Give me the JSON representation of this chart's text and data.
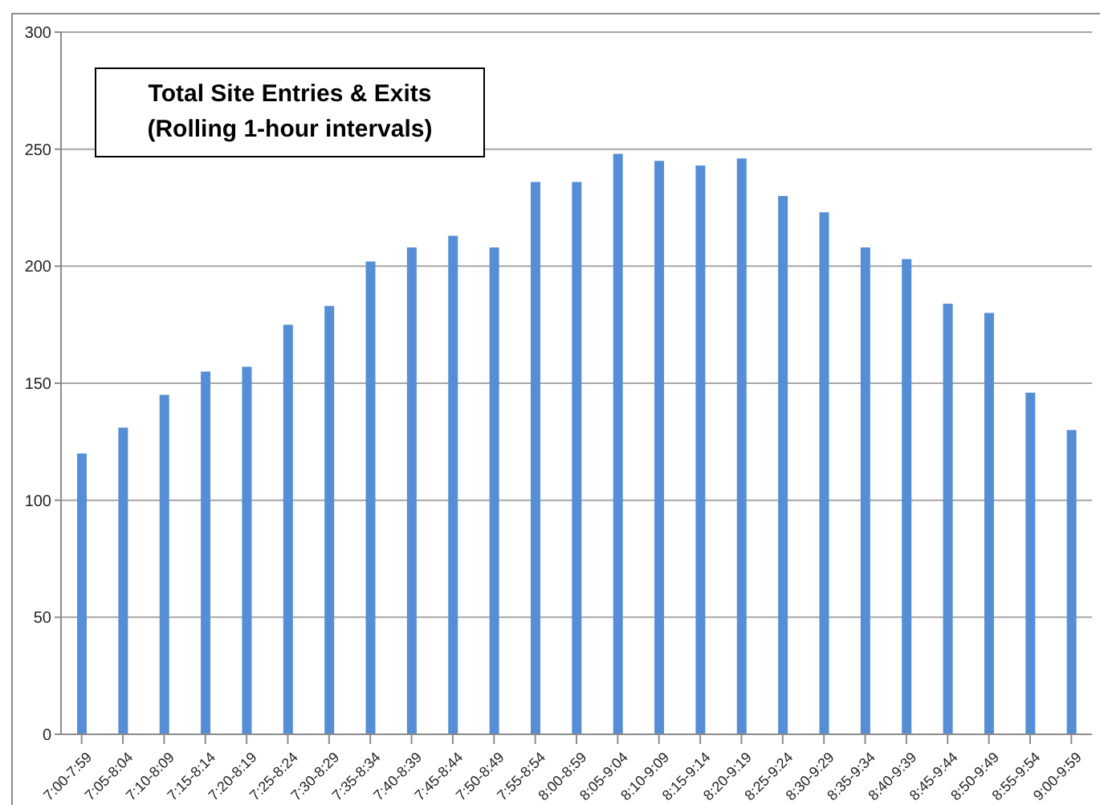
{
  "chart_data": {
    "type": "bar",
    "title": "Total Site Entries & Exits",
    "subtitle": "(Rolling 1-hour intervals)",
    "categories": [
      "7:00-7:59",
      "7:05-8:04",
      "7:10-8:09",
      "7:15-8:14",
      "7:20-8:19",
      "7:25-8:24",
      "7:30-8:29",
      "7:35-8:34",
      "7:40-8:39",
      "7:45-8:44",
      "7:50-8:49",
      "7:55-8:54",
      "8:00-8:59",
      "8:05-9:04",
      "8:10-9:09",
      "8:15-9:14",
      "8:20-9:19",
      "8:25-9:24",
      "8:30-9:29",
      "8:35-9:34",
      "8:40-9:39",
      "8:45-9:44",
      "8:50-9:49",
      "8:55-9:54",
      "9:00-9:59"
    ],
    "values": [
      120,
      131,
      145,
      155,
      157,
      175,
      183,
      202,
      208,
      213,
      208,
      236,
      236,
      248,
      245,
      243,
      246,
      230,
      223,
      208,
      203,
      184,
      180,
      146,
      130
    ],
    "color": "#558ed5",
    "ylim": [
      0,
      300
    ],
    "yticks": [
      0,
      50,
      100,
      150,
      200,
      250,
      300
    ],
    "grid": "y"
  }
}
